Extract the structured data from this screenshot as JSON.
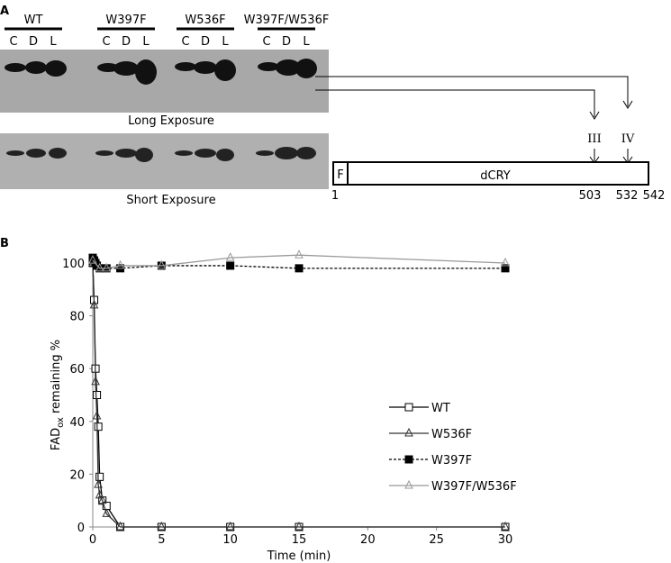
{
  "panel_a": {
    "label": "A",
    "groups": [
      {
        "name": "WT",
        "lanes": [
          "C",
          "D",
          "L"
        ]
      },
      {
        "name": "W397F",
        "lanes": [
          "C",
          "D",
          "L"
        ]
      },
      {
        "name": "W536F",
        "lanes": [
          "C",
          "D",
          "L"
        ]
      },
      {
        "name": "W397F/W536F",
        "lanes": [
          "C",
          "D",
          "L"
        ]
      }
    ],
    "long_exposure": "Long Exposure",
    "short_exposure": "Short Exposure",
    "diagram": {
      "protein": "dCRY",
      "tag": "F",
      "site_iii": "III",
      "site_iv": "IV",
      "positions": [
        "1",
        "503",
        "532",
        "542"
      ]
    }
  },
  "chart_data": {
    "type": "line",
    "label": "B",
    "xlabel": "Time (min)",
    "ylabel": {
      "main": "FAD",
      "sub": "ox",
      "rest": " remaining %"
    },
    "xlim": [
      0,
      30
    ],
    "xticks": [
      0,
      5,
      10,
      15,
      20,
      25,
      30
    ],
    "ylim": [
      0,
      100
    ],
    "yticks": [
      0,
      20,
      40,
      60,
      80,
      100
    ],
    "series": [
      {
        "name": "WT",
        "color": "#000000",
        "dash": "none",
        "marker": "square-open",
        "x": [
          0,
          0.1,
          0.2,
          0.3,
          0.4,
          0.5,
          0.7,
          1,
          2,
          5,
          10,
          15,
          30
        ],
        "values": [
          100,
          86,
          60,
          50,
          38,
          19,
          10,
          8,
          0,
          0,
          0,
          0,
          0
        ]
      },
      {
        "name": "W536F",
        "color": "#333333",
        "dash": "none",
        "marker": "triangle-open",
        "x": [
          0,
          0.1,
          0.2,
          0.3,
          0.4,
          0.5,
          0.7,
          1,
          2,
          5,
          10,
          15,
          30
        ],
        "values": [
          100,
          84,
          55,
          42,
          16,
          12,
          10,
          5,
          0,
          0,
          0,
          0,
          0
        ]
      },
      {
        "name": "W397F",
        "color": "#000000",
        "dash": "3,2",
        "marker": "square-filled",
        "x": [
          0,
          0.1,
          0.2,
          0.3,
          0.5,
          1,
          2,
          5,
          10,
          15,
          30
        ],
        "values": [
          102,
          101,
          100,
          99,
          98,
          98,
          98,
          99,
          99,
          98,
          98
        ]
      },
      {
        "name": "W397F/W536F",
        "color": "#999999",
        "dash": "none",
        "marker": "triangle-open",
        "x": [
          0,
          0.5,
          1,
          2,
          5,
          10,
          15,
          30
        ],
        "values": [
          101,
          98,
          98,
          99,
          99,
          102,
          103,
          100
        ]
      }
    ]
  }
}
